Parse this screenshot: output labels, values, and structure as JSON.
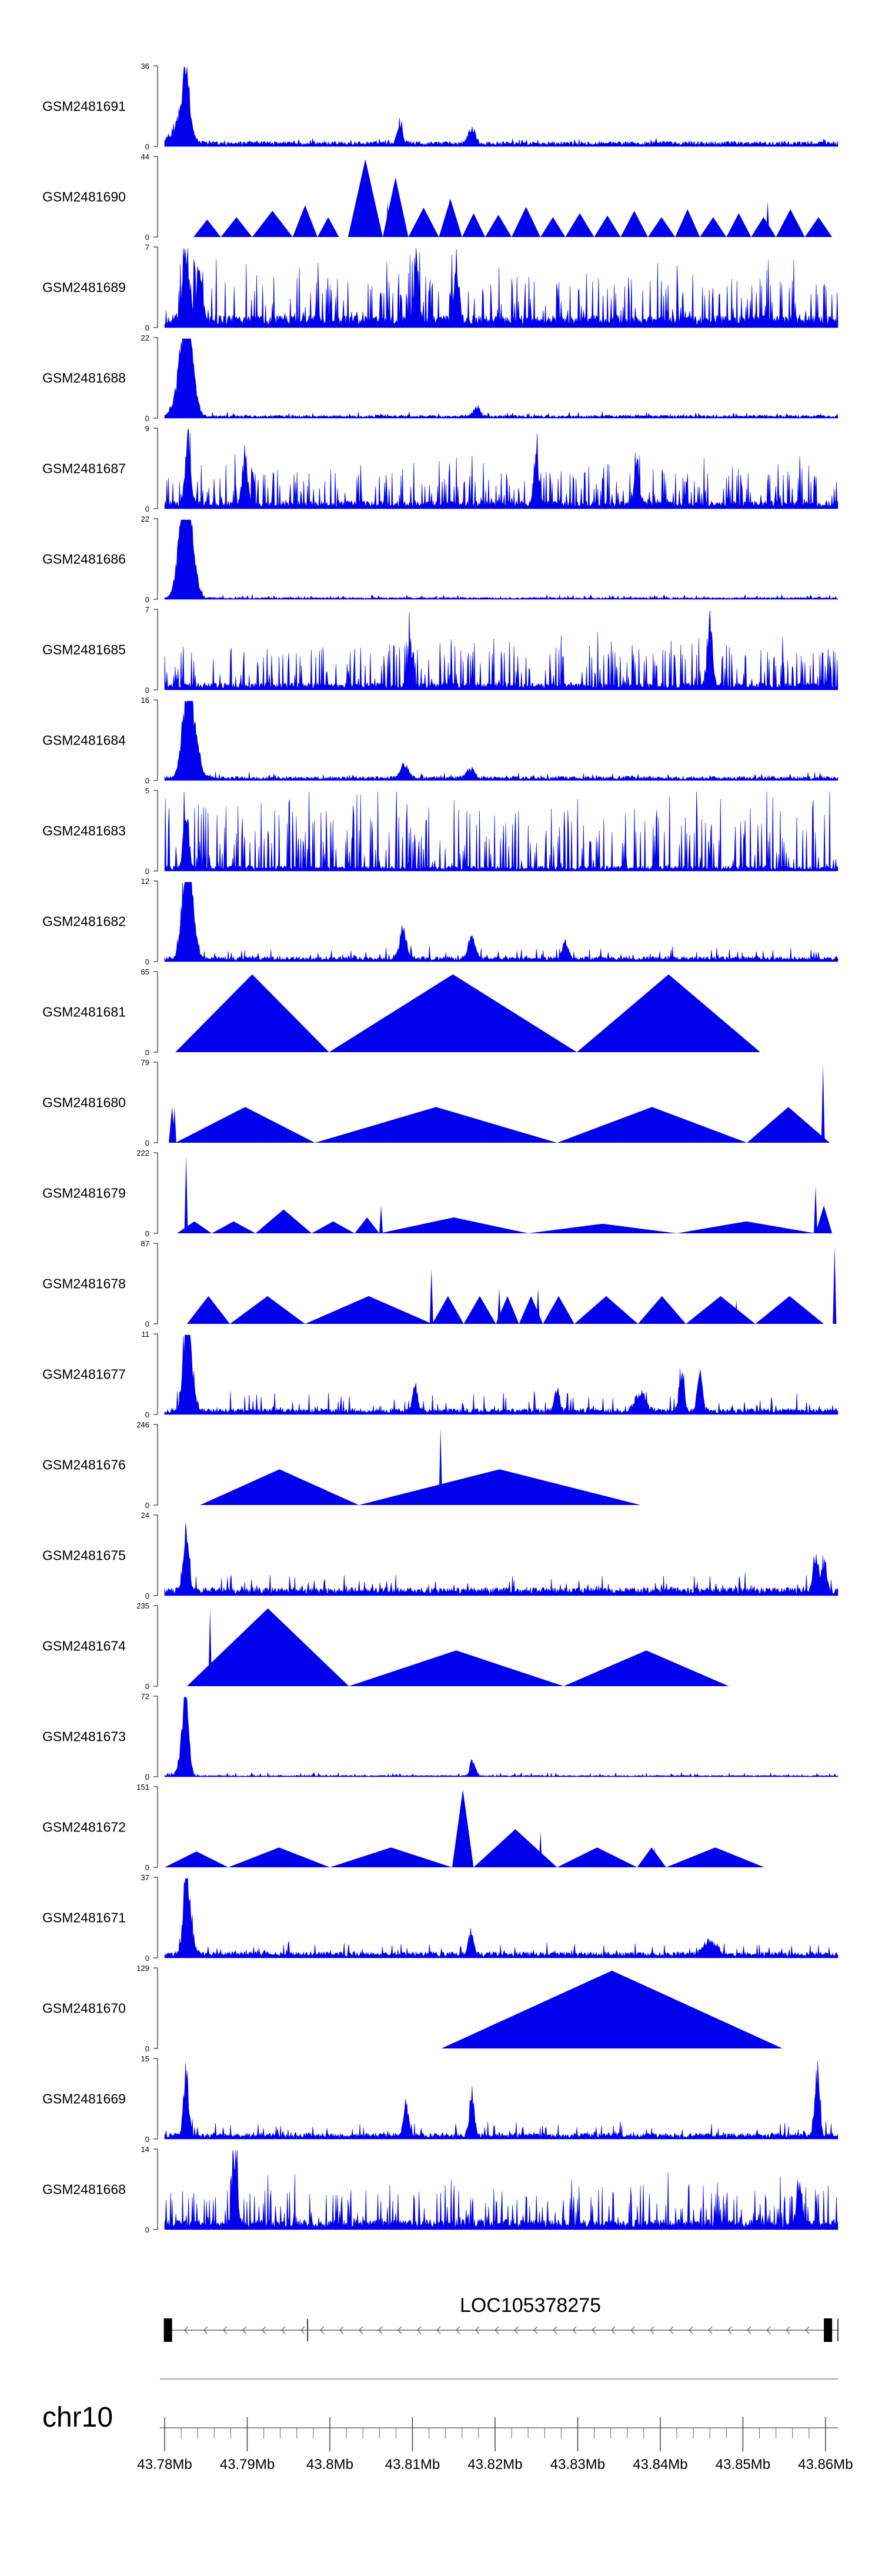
{
  "chart_data": {
    "type": "area",
    "title": "",
    "x_unit": "Mb",
    "xlim": [
      43.78,
      43.8615
    ],
    "x_tick_values": [
      43.78,
      43.79,
      43.8,
      43.81,
      43.82,
      43.83,
      43.84,
      43.85,
      43.86
    ],
    "x_tick_labels": [
      "43.78Mb",
      "43.79Mb",
      "43.8Mb",
      "43.81Mb",
      "43.82Mb",
      "43.83Mb",
      "43.84Mb",
      "43.85Mb",
      "43.86Mb"
    ],
    "chromosome": "chr10",
    "gene": {
      "name": "LOC105378275",
      "start": 43.7799,
      "end": 43.8615,
      "strand": "-",
      "exons": [
        [
          43.7799,
          43.7809
        ],
        [
          43.8598,
          43.8608
        ]
      ],
      "splice_marks": [
        43.7973
      ]
    },
    "series": [
      {
        "name": "GSM2481691",
        "ymax": "36",
        "ymin": "0",
        "mode": "peaks",
        "seed": 11,
        "base": 0.05,
        "noise": 0.04,
        "peaks": [
          [
            43.7826,
            1.0,
            0.0004
          ],
          [
            43.8085,
            0.3,
            0.0003
          ],
          [
            43.8172,
            0.25,
            0.0004
          ],
          [
            43.782,
            0.35,
            0.001
          ]
        ]
      },
      {
        "name": "GSM2481690",
        "ymax": "44",
        "ymin": "0",
        "mode": "triangles",
        "seed": 5,
        "tri": [
          [
            43.7835,
            43.7868,
            0.22
          ],
          [
            43.7868,
            43.7906,
            0.25
          ],
          [
            43.7906,
            43.7955,
            0.33
          ],
          [
            43.7955,
            43.7985,
            0.4
          ],
          [
            43.7985,
            43.8011,
            0.25
          ],
          [
            43.8022,
            43.8064,
            0.98
          ],
          [
            43.8064,
            43.8095,
            0.75
          ],
          [
            43.8095,
            43.8132,
            0.37
          ],
          [
            43.8132,
            43.816,
            0.48
          ],
          [
            43.816,
            43.8188,
            0.3
          ],
          [
            43.8188,
            43.822,
            0.28
          ],
          [
            43.822,
            43.8255,
            0.38
          ],
          [
            43.8255,
            43.8285,
            0.25
          ],
          [
            43.8285,
            43.832,
            0.3
          ],
          [
            43.832,
            43.8352,
            0.27
          ],
          [
            43.8352,
            43.8385,
            0.33
          ],
          [
            43.8385,
            43.8418,
            0.25
          ],
          [
            43.8418,
            43.8448,
            0.35
          ],
          [
            43.8448,
            43.848,
            0.25
          ],
          [
            43.848,
            43.851,
            0.3
          ],
          [
            43.851,
            43.854,
            0.25
          ],
          [
            43.854,
            43.8575,
            0.35
          ],
          [
            43.8575,
            43.8608,
            0.25
          ]
        ],
        "spikes": [
          [
            43.807,
            0.45
          ],
          [
            43.8145,
            0.5
          ],
          [
            43.853,
            0.45
          ]
        ]
      },
      {
        "name": "GSM2481689",
        "ymax": "7",
        "ymin": "0",
        "mode": "dense",
        "seed": 23,
        "base": 0.12,
        "noise": 0.55,
        "peaks": [
          [
            43.7826,
            1.0,
            0.0004
          ],
          [
            43.7842,
            0.7,
            0.0004
          ],
          [
            43.8153,
            0.9,
            0.0003
          ],
          [
            43.8105,
            0.85,
            0.0003
          ]
        ]
      },
      {
        "name": "GSM2481688",
        "ymax": "22",
        "ymin": "0",
        "mode": "peaks",
        "seed": 31,
        "base": 0.03,
        "noise": 0.05,
        "peaks": [
          [
            43.7826,
            1.0,
            0.0006
          ],
          [
            43.7822,
            0.6,
            0.0008
          ],
          [
            43.7832,
            0.4,
            0.0006
          ],
          [
            43.8178,
            0.15,
            0.0004
          ]
        ]
      },
      {
        "name": "GSM2481687",
        "ymax": "9",
        "ymin": "0",
        "mode": "dense",
        "seed": 37,
        "base": 0.08,
        "noise": 0.45,
        "peaks": [
          [
            43.7828,
            1.0,
            0.0003
          ],
          [
            43.7897,
            0.8,
            0.0003
          ],
          [
            43.825,
            0.7,
            0.0003
          ],
          [
            43.8372,
            0.6,
            0.0003
          ]
        ]
      },
      {
        "name": "GSM2481686",
        "ymax": "22",
        "ymin": "0",
        "mode": "peaks",
        "seed": 41,
        "base": 0.02,
        "noise": 0.04,
        "peaks": [
          [
            43.7826,
            1.0,
            0.0005
          ],
          [
            43.7822,
            0.85,
            0.0007
          ],
          [
            43.7832,
            0.6,
            0.0006
          ]
        ]
      },
      {
        "name": "GSM2481685",
        "ymax": "7",
        "ymin": "0",
        "mode": "dense",
        "seed": 43,
        "base": 0.07,
        "noise": 0.5,
        "peaks": [
          [
            43.846,
            1.0,
            0.0003
          ],
          [
            43.8098,
            0.6,
            0.0003
          ]
        ]
      },
      {
        "name": "GSM2481684",
        "ymax": "16",
        "ymin": "0",
        "mode": "peaks",
        "seed": 47,
        "base": 0.04,
        "noise": 0.06,
        "peaks": [
          [
            43.7828,
            1.0,
            0.0006
          ],
          [
            43.7832,
            0.7,
            0.0008
          ],
          [
            43.809,
            0.2,
            0.0005
          ],
          [
            43.817,
            0.15,
            0.0005
          ]
        ]
      },
      {
        "name": "GSM2481683",
        "ymax": "5",
        "ymin": "0",
        "mode": "dense",
        "seed": 53,
        "base": 0.05,
        "noise": 0.75,
        "peaks": [
          [
            43.7826,
            1.0,
            0.0003
          ]
        ]
      },
      {
        "name": "GSM2481682",
        "ymax": "12",
        "ymin": "0",
        "mode": "peaks",
        "seed": 59,
        "base": 0.05,
        "noise": 0.14,
        "peaks": [
          [
            43.7826,
            1.0,
            0.0005
          ],
          [
            43.783,
            0.8,
            0.0006
          ],
          [
            43.8088,
            0.45,
            0.0004
          ],
          [
            43.8172,
            0.35,
            0.0004
          ],
          [
            43.8285,
            0.22,
            0.0004
          ]
        ]
      },
      {
        "name": "GSM2481681",
        "ymax": "65",
        "ymin": "0",
        "mode": "triangles",
        "seed": 61,
        "tri": [
          [
            43.7813,
            43.7999,
            0.98
          ],
          [
            43.7999,
            43.8299,
            0.98
          ],
          [
            43.8299,
            43.8521,
            0.98
          ]
        ],
        "spikes": []
      },
      {
        "name": "GSM2481680",
        "ymax": "79",
        "ymin": "0",
        "mode": "triangles",
        "seed": 67,
        "tri": [
          [
            43.7805,
            43.7813,
            0.45
          ],
          [
            43.7813,
            43.7982,
            0.45
          ],
          [
            43.7982,
            43.8275,
            0.45
          ],
          [
            43.8275,
            43.8505,
            0.45
          ],
          [
            43.8505,
            43.8605,
            0.45
          ]
        ],
        "spikes": [
          [
            43.8597,
            0.98
          ],
          [
            43.7812,
            0.45
          ]
        ]
      },
      {
        "name": "GSM2481679",
        "ymax": "222",
        "ymin": "0",
        "mode": "triangles",
        "seed": 71,
        "tri": [
          [
            43.7815,
            43.7857,
            0.15
          ],
          [
            43.7857,
            43.791,
            0.15
          ],
          [
            43.791,
            43.7978,
            0.3
          ],
          [
            43.7978,
            43.803,
            0.15
          ],
          [
            43.803,
            43.806,
            0.2
          ],
          [
            43.806,
            43.824,
            0.2
          ],
          [
            43.824,
            43.842,
            0.12
          ],
          [
            43.842,
            43.8588,
            0.15
          ],
          [
            43.8588,
            43.8608,
            0.35
          ]
        ],
        "spikes": [
          [
            43.7826,
            0.98
          ],
          [
            43.8062,
            0.35
          ],
          [
            43.8588,
            0.6
          ]
        ]
      },
      {
        "name": "GSM2481678",
        "ymax": "87",
        "ymin": "0",
        "mode": "triangles",
        "seed": 73,
        "tri": [
          [
            43.7827,
            43.7879,
            0.35
          ],
          [
            43.7879,
            43.797,
            0.35
          ],
          [
            43.797,
            43.8124,
            0.35
          ],
          [
            43.8124,
            43.8162,
            0.35
          ],
          [
            43.8162,
            43.8201,
            0.35
          ],
          [
            43.8201,
            43.8229,
            0.35
          ],
          [
            43.8229,
            43.8258,
            0.35
          ],
          [
            43.8258,
            43.8296,
            0.35
          ],
          [
            43.8296,
            43.8373,
            0.35
          ],
          [
            43.8373,
            43.8431,
            0.35
          ],
          [
            43.8431,
            43.8515,
            0.35
          ],
          [
            43.8515,
            43.8598,
            0.35
          ]
        ],
        "spikes": [
          [
            43.8123,
            0.7
          ],
          [
            43.8611,
            0.98
          ],
          [
            43.8205,
            0.45
          ],
          [
            43.8252,
            0.45
          ],
          [
            43.8492,
            0.3
          ]
        ]
      },
      {
        "name": "GSM2481677",
        "ymax": "11",
        "ymin": "0",
        "mode": "peaks",
        "seed": 79,
        "base": 0.06,
        "noise": 0.22,
        "peaks": [
          [
            43.7826,
            1.0,
            0.0004
          ],
          [
            43.783,
            0.7,
            0.0005
          ],
          [
            43.8426,
            0.65,
            0.0003
          ],
          [
            43.8448,
            0.6,
            0.0003
          ],
          [
            43.8376,
            0.3,
            0.0006
          ],
          [
            43.8103,
            0.4,
            0.0003
          ],
          [
            43.8275,
            0.35,
            0.0003
          ]
        ]
      },
      {
        "name": "GSM2481676",
        "ymax": "246",
        "ymin": "0",
        "mode": "triangles",
        "seed": 83,
        "tri": [
          [
            43.7843,
            43.8035,
            0.45
          ],
          [
            43.8035,
            43.8376,
            0.45
          ]
        ],
        "spikes": [
          [
            43.8134,
            0.98
          ]
        ]
      },
      {
        "name": "GSM2481675",
        "ymax": "24",
        "ymin": "0",
        "mode": "peaks",
        "seed": 89,
        "base": 0.08,
        "noise": 0.2,
        "peaks": [
          [
            43.7826,
            1.0,
            0.0003
          ],
          [
            43.8588,
            0.55,
            0.0003
          ],
          [
            43.8598,
            0.4,
            0.0003
          ]
        ]
      },
      {
        "name": "GSM2481674",
        "ymax": "235",
        "ymin": "0",
        "mode": "triangles",
        "seed": 97,
        "tri": [
          [
            43.7827,
            43.8023,
            0.98
          ],
          [
            43.8023,
            43.8283,
            0.45
          ],
          [
            43.8283,
            43.8483,
            0.45
          ]
        ],
        "spikes": [
          [
            43.7855,
            0.98
          ]
        ]
      },
      {
        "name": "GSM2481673",
        "ymax": "72",
        "ymin": "0",
        "mode": "peaks",
        "seed": 101,
        "base": 0.015,
        "noise": 0.04,
        "peaks": [
          [
            43.7826,
            1.0,
            0.0003
          ],
          [
            43.7823,
            0.5,
            0.0005
          ],
          [
            43.8173,
            0.25,
            0.0003
          ]
        ]
      },
      {
        "name": "GSM2481672",
        "ymax": "151",
        "ymin": "0",
        "mode": "triangles",
        "seed": 103,
        "tri": [
          [
            43.78,
            43.7877,
            0.2
          ],
          [
            43.7877,
            43.8,
            0.25
          ],
          [
            43.8,
            43.8148,
            0.25
          ],
          [
            43.8148,
            43.8174,
            0.98
          ],
          [
            43.8174,
            43.8275,
            0.48
          ],
          [
            43.8275,
            43.8372,
            0.25
          ],
          [
            43.8372,
            43.8407,
            0.25
          ],
          [
            43.8407,
            43.8526,
            0.25
          ]
        ],
        "spikes": [
          [
            43.8255,
            0.45
          ],
          [
            43.8393,
            0.25
          ]
        ]
      },
      {
        "name": "GSM2481671",
        "ymax": "37",
        "ymin": "0",
        "mode": "peaks",
        "seed": 107,
        "base": 0.06,
        "noise": 0.14,
        "peaks": [
          [
            43.7826,
            1.0,
            0.0003
          ],
          [
            43.7829,
            0.55,
            0.0005
          ],
          [
            43.8171,
            0.35,
            0.0003
          ],
          [
            43.846,
            0.2,
            0.0008
          ]
        ]
      },
      {
        "name": "GSM2481670",
        "ymax": "129",
        "ymin": "0",
        "mode": "triangles",
        "seed": 109,
        "tri": [
          [
            43.8135,
            43.8548,
            0.98
          ]
        ],
        "spikes": []
      },
      {
        "name": "GSM2481669",
        "ymax": "15",
        "ymin": "0",
        "mode": "peaks",
        "seed": 113,
        "base": 0.06,
        "noise": 0.16,
        "peaks": [
          [
            43.7826,
            1.0,
            0.0003
          ],
          [
            43.859,
            0.98,
            0.0003
          ],
          [
            43.8172,
            0.6,
            0.0003
          ],
          [
            43.8092,
            0.5,
            0.0003
          ]
        ]
      },
      {
        "name": "GSM2481668",
        "ymax": "14",
        "ymin": "0",
        "mode": "dense",
        "seed": 127,
        "base": 0.1,
        "noise": 0.42,
        "peaks": [
          [
            43.7885,
            0.98,
            0.0003
          ],
          [
            43.8568,
            0.55,
            0.0003
          ]
        ]
      }
    ]
  }
}
